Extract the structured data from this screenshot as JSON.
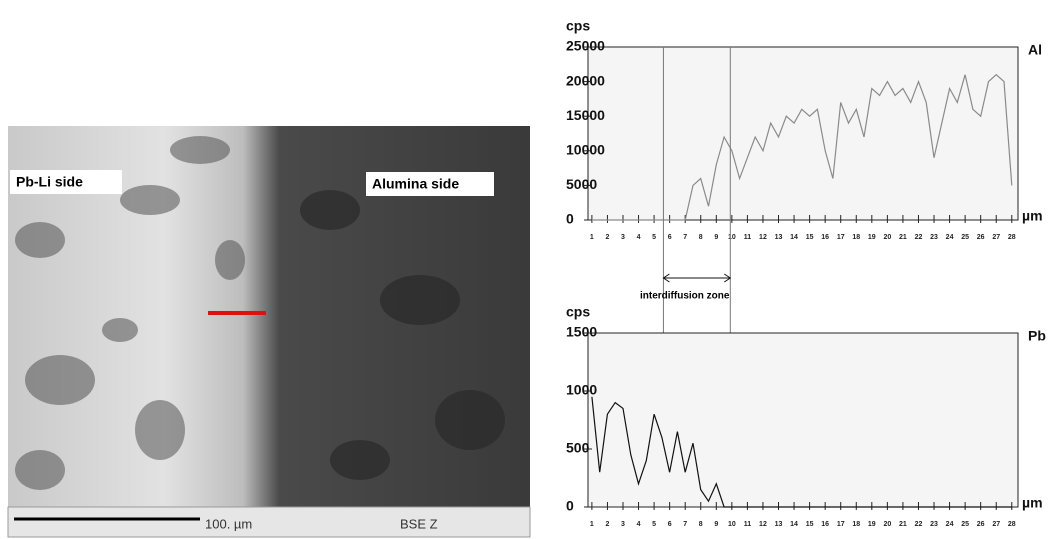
{
  "image": {
    "labels": [
      "Pb-Li side",
      "Alumina side"
    ],
    "scale_bar": "100. µm",
    "detector": "BSE Z"
  },
  "chart_data": [
    {
      "type": "line",
      "y_label": "cps",
      "x_label": "µm",
      "x": [
        1,
        1.5,
        2,
        2.5,
        3,
        3.5,
        4,
        4.5,
        5,
        5.5,
        6,
        6.5,
        7,
        7.5,
        8,
        8.5,
        9,
        9.5,
        10,
        10.5,
        11,
        11.5,
        12,
        12.5,
        13,
        13.5,
        14,
        14.5,
        15,
        15.5,
        16,
        16.5,
        17,
        17.5,
        18,
        18.5,
        19,
        19.5,
        20,
        20.5,
        21,
        21.5,
        22,
        22.5,
        23,
        23.5,
        24,
        24.5,
        25,
        25.5,
        26,
        26.5,
        27,
        27.5,
        28
      ],
      "series": [
        {
          "name": "Al",
          "color": "#8a8a8a",
          "values": [
            0,
            0,
            0,
            0,
            0,
            0,
            0,
            0,
            0,
            0,
            0,
            0,
            0,
            5000,
            6000,
            2000,
            8000,
            12000,
            10000,
            6000,
            9000,
            12000,
            10000,
            14000,
            12000,
            15000,
            14000,
            16000,
            15000,
            16000,
            10000,
            6000,
            17000,
            14000,
            16000,
            12000,
            19000,
            18000,
            20000,
            18000,
            19000,
            17000,
            20000,
            17000,
            9000,
            14000,
            19000,
            17000,
            21000,
            16000,
            15000,
            20000,
            21000,
            20000,
            5000
          ]
        }
      ],
      "xlim": [
        0.75,
        28.4
      ],
      "ylim": [
        0,
        25000
      ],
      "xticks": [
        1,
        2,
        3,
        4,
        5,
        6,
        7,
        8,
        9,
        10,
        11,
        12,
        13,
        14,
        15,
        16,
        17,
        18,
        19,
        20,
        21,
        22,
        23,
        24,
        25,
        26,
        27,
        28
      ],
      "yticks": [
        0,
        5000,
        10000,
        15000,
        20000,
        25000
      ],
      "annotation": {
        "text": "interdiffusion zone",
        "range": [
          5.6,
          9.9
        ]
      }
    },
    {
      "type": "line",
      "y_label": "cps",
      "x_label": "µm",
      "x": [
        1,
        1.5,
        2,
        2.5,
        3,
        3.5,
        4,
        4.5,
        5,
        5.5,
        6,
        6.5,
        7,
        7.5,
        8,
        8.5,
        9,
        9.5,
        10,
        10.5,
        11,
        11.5,
        12,
        12.5,
        13,
        13.5,
        14,
        14.5,
        15,
        15.5,
        16,
        16.5,
        17,
        17.5,
        18,
        18.5,
        19,
        19.5,
        20,
        20.5,
        21,
        21.5,
        22,
        22.5,
        23,
        23.5,
        24,
        24.5,
        25,
        25.5,
        26,
        26.5,
        27,
        27.5,
        28
      ],
      "series": [
        {
          "name": "Pb",
          "color": "#111111",
          "values": [
            950,
            300,
            800,
            900,
            850,
            450,
            200,
            400,
            800,
            600,
            300,
            650,
            300,
            550,
            150,
            50,
            200,
            0,
            0,
            0,
            0,
            0,
            0,
            0,
            0,
            0,
            0,
            0,
            0,
            0,
            0,
            0,
            0,
            0,
            0,
            0,
            0,
            0,
            0,
            0,
            0,
            0,
            0,
            0,
            0,
            0,
            0,
            0,
            0,
            0,
            0,
            0,
            0,
            0,
            0
          ]
        }
      ],
      "xlim": [
        0.75,
        28.4
      ],
      "ylim": [
        0,
        1500
      ],
      "xticks": [
        1,
        2,
        3,
        4,
        5,
        6,
        7,
        8,
        9,
        10,
        11,
        12,
        13,
        14,
        15,
        16,
        17,
        18,
        19,
        20,
        21,
        22,
        23,
        24,
        25,
        26,
        27,
        28
      ],
      "yticks": [
        0,
        500,
        1000,
        1500
      ]
    }
  ]
}
